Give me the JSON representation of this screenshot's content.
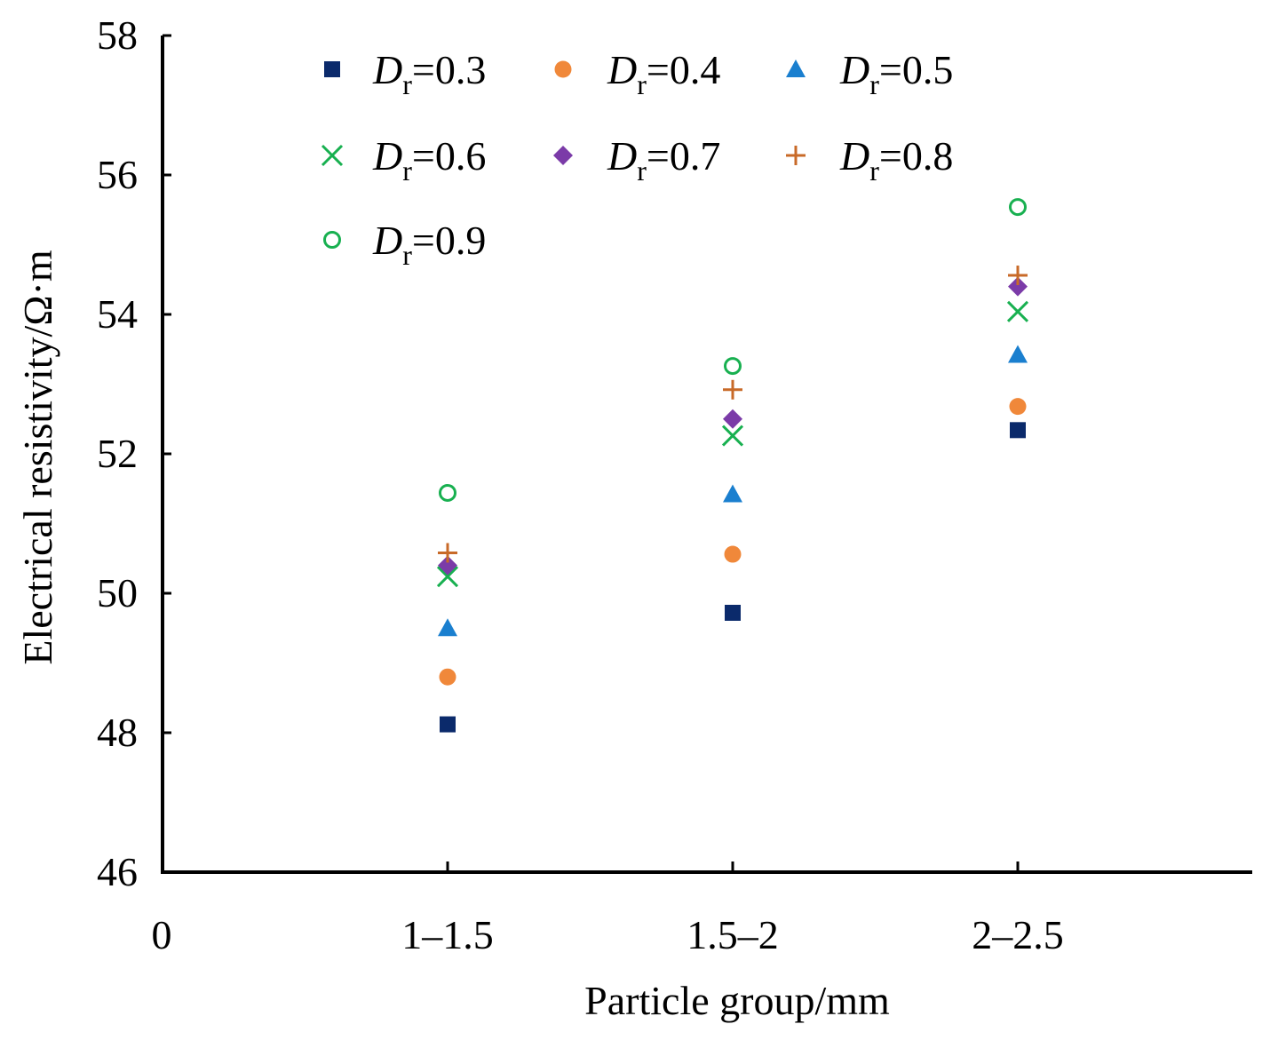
{
  "chart_data": {
    "type": "scatter",
    "title": "",
    "xlabel": "Particle group/mm",
    "ylabel": "Electrical resistivity/Ω·m",
    "x_origin_label": "0",
    "categories": [
      "1–1.5",
      "1.5–2",
      "2–2.5"
    ],
    "ylim": [
      46,
      58
    ],
    "yticks": [
      "46",
      "48",
      "50",
      "52",
      "54",
      "56",
      "58"
    ],
    "grid": false,
    "legend_position": "top-left",
    "legend_symbol": "D",
    "legend_subscript": "r",
    "series": [
      {
        "name": "Dr=0.3",
        "value_label": "=0.3",
        "marker": "square",
        "color": "#0B2A6B",
        "values": [
          48.12,
          49.72,
          52.34
        ]
      },
      {
        "name": "Dr=0.4",
        "value_label": "=0.4",
        "marker": "circle",
        "color": "#F0883A",
        "values": [
          48.8,
          50.56,
          52.68
        ]
      },
      {
        "name": "Dr=0.5",
        "value_label": "=0.5",
        "marker": "triangle",
        "color": "#1A7FCF",
        "values": [
          49.5,
          51.42,
          53.42
        ]
      },
      {
        "name": "Dr=0.6",
        "value_label": "=0.6",
        "marker": "x",
        "color": "#18B050",
        "values": [
          50.24,
          52.26,
          54.04
        ]
      },
      {
        "name": "Dr=0.7",
        "value_label": "=0.7",
        "marker": "diamond",
        "color": "#7B3BA8",
        "values": [
          50.4,
          52.5,
          54.4
        ]
      },
      {
        "name": "Dr=0.8",
        "value_label": "=0.8",
        "marker": "plus",
        "color": "#C86A28",
        "values": [
          50.58,
          52.92,
          54.56
        ]
      },
      {
        "name": "Dr=0.9",
        "value_label": "=0.9",
        "marker": "circle-open",
        "color": "#18B050",
        "values": [
          51.44,
          53.26,
          55.54
        ]
      }
    ]
  }
}
